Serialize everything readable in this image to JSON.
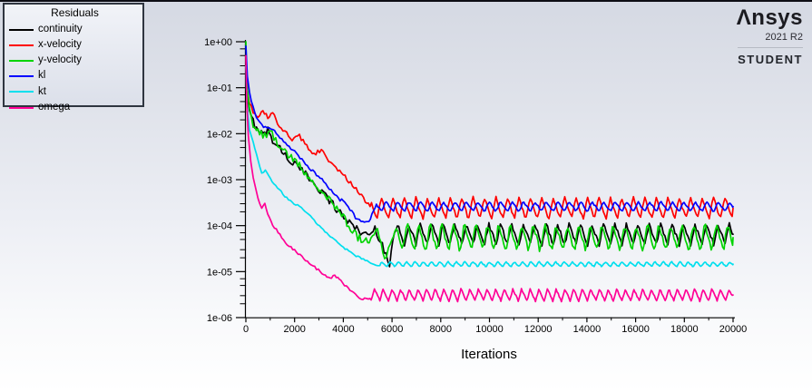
{
  "branding": {
    "logo_glyph": "Λ",
    "logo_rest": "nsys",
    "version": "2021 R2",
    "edition": "STUDENT"
  },
  "legend": {
    "title": "Residuals",
    "entries": [
      {
        "label": "continuity",
        "color": "#000000"
      },
      {
        "label": "x-velocity",
        "color": "#ff0000"
      },
      {
        "label": "y-velocity",
        "color": "#00d400"
      },
      {
        "label": "kl",
        "color": "#0000ff"
      },
      {
        "label": "kt",
        "color": "#00dfee"
      },
      {
        "label": "omega",
        "color": "#ff0096"
      }
    ]
  },
  "chart_data": {
    "type": "line",
    "title": "Residuals",
    "xlabel": "Iterations",
    "ylabel": "",
    "x_range": [
      0,
      20000
    ],
    "x_major_ticks": [
      0,
      2000,
      4000,
      6000,
      8000,
      10000,
      12000,
      14000,
      16000,
      18000,
      20000
    ],
    "x_minor_tick_step": 1000,
    "y_scale": "log",
    "y_range": [
      1e-06,
      1
    ],
    "y_tick_labels": [
      "1e+00",
      "1e-01",
      "1e-02",
      "1e-03",
      "1e-04",
      "1e-05",
      "1e-06"
    ],
    "grid": false,
    "legend_position": "top-left",
    "series": [
      {
        "name": "continuity",
        "color": "#000000",
        "descent_jitter": 0.09,
        "descent_points": [
          [
            0,
            0.45
          ],
          [
            60,
            0.06
          ],
          [
            150,
            0.028
          ],
          [
            300,
            0.018
          ],
          [
            500,
            0.013
          ],
          [
            700,
            0.0095
          ],
          [
            900,
            0.012
          ],
          [
            1100,
            0.0075
          ],
          [
            1400,
            0.0048
          ],
          [
            1700,
            0.003
          ],
          [
            2000,
            0.0022
          ],
          [
            2300,
            0.0015
          ],
          [
            2600,
            0.0011
          ],
          [
            2900,
            0.00075
          ],
          [
            3200,
            0.0005
          ],
          [
            3500,
            0.00032
          ],
          [
            3800,
            0.00021
          ],
          [
            4100,
            0.00014
          ],
          [
            4400,
            0.0001
          ],
          [
            4700,
            7.5e-05
          ],
          [
            5000,
            6e-05
          ],
          [
            5300,
            8.5e-05
          ],
          [
            5600,
            4e-05
          ],
          [
            5900,
            1.4e-05
          ],
          [
            6100,
            7e-05
          ]
        ],
        "steady_state": {
          "from": 6100,
          "to": 20000,
          "mean": 6.5e-05,
          "log_amplitude": 0.22,
          "period": 470,
          "phase": 0.15,
          "jitter": 0.05
        }
      },
      {
        "name": "x-velocity",
        "color": "#ff0000",
        "descent_jitter": 0.045,
        "descent_points": [
          [
            0,
            0.3
          ],
          [
            60,
            0.08
          ],
          [
            150,
            0.045
          ],
          [
            300,
            0.03
          ],
          [
            500,
            0.024
          ],
          [
            700,
            0.032
          ],
          [
            900,
            0.022
          ],
          [
            1100,
            0.028
          ],
          [
            1300,
            0.017
          ],
          [
            1600,
            0.011
          ],
          [
            1900,
            0.0075
          ],
          [
            2200,
            0.0088
          ],
          [
            2500,
            0.0052
          ],
          [
            2800,
            0.0036
          ],
          [
            3100,
            0.0044
          ],
          [
            3400,
            0.0027
          ],
          [
            3700,
            0.0018
          ],
          [
            4000,
            0.00125
          ],
          [
            4300,
            0.00085
          ],
          [
            4600,
            0.00055
          ],
          [
            4900,
            0.00034
          ],
          [
            5100,
            0.00026
          ]
        ],
        "steady_state": {
          "from": 5100,
          "to": 20000,
          "mean": 0.00024,
          "log_amplitude": 0.24,
          "period": 470,
          "phase": 0.55,
          "jitter": 0.035
        }
      },
      {
        "name": "y-velocity",
        "color": "#00d400",
        "descent_jitter": 0.08,
        "descent_points": [
          [
            0,
            1.0
          ],
          [
            50,
            0.12
          ],
          [
            150,
            0.035
          ],
          [
            300,
            0.016
          ],
          [
            500,
            0.0115
          ],
          [
            700,
            0.009
          ],
          [
            1000,
            0.011
          ],
          [
            1300,
            0.0062
          ],
          [
            1600,
            0.0042
          ],
          [
            2000,
            0.0026
          ],
          [
            2400,
            0.0015
          ],
          [
            2800,
            0.00088
          ],
          [
            3200,
            0.0005
          ],
          [
            3600,
            0.00029
          ],
          [
            4000,
            0.00015
          ],
          [
            4300,
            9e-05
          ],
          [
            4600,
            5.5e-05
          ],
          [
            5000,
            4.5e-05
          ],
          [
            5400,
            7.5e-05
          ],
          [
            5700,
            1.8e-05
          ],
          [
            6000,
            5e-05
          ]
        ],
        "steady_state": {
          "from": 6000,
          "to": 20000,
          "mean": 5.5e-05,
          "log_amplitude": 0.3,
          "period": 470,
          "phase": 0.3,
          "jitter": 0.06
        }
      },
      {
        "name": "kl",
        "color": "#0000ff",
        "descent_jitter": 0.035,
        "descent_points": [
          [
            0,
            0.8
          ],
          [
            60,
            0.18
          ],
          [
            150,
            0.08
          ],
          [
            300,
            0.038
          ],
          [
            500,
            0.019
          ],
          [
            800,
            0.0135
          ],
          [
            1100,
            0.0125
          ],
          [
            1400,
            0.0085
          ],
          [
            1700,
            0.0058
          ],
          [
            2000,
            0.004
          ],
          [
            2300,
            0.0028
          ],
          [
            2600,
            0.0018
          ],
          [
            2900,
            0.00128
          ],
          [
            3200,
            0.0009
          ],
          [
            3500,
            0.00058
          ],
          [
            3800,
            0.00038
          ],
          [
            4000,
            0.00034
          ],
          [
            4200,
            0.00026
          ],
          [
            4500,
            0.00015
          ],
          [
            4800,
            0.000115
          ],
          [
            5050,
            0.00012
          ],
          [
            5300,
            0.00024
          ]
        ],
        "steady_state": {
          "from": 5300,
          "to": 20000,
          "mean": 0.00026,
          "log_amplitude": 0.11,
          "period": 470,
          "phase": 0.15,
          "jitter": 0.02
        }
      },
      {
        "name": "kt",
        "color": "#00dfee",
        "descent_jitter": 0.02,
        "descent_points": [
          [
            0,
            0.3
          ],
          [
            50,
            0.04
          ],
          [
            150,
            0.012
          ],
          [
            300,
            0.0065
          ],
          [
            500,
            0.0028
          ],
          [
            650,
            0.00135
          ],
          [
            800,
            0.0016
          ],
          [
            1000,
            0.00105
          ],
          [
            1300,
            0.00068
          ],
          [
            1600,
            0.00044
          ],
          [
            1900,
            0.00032
          ],
          [
            2200,
            0.00026
          ],
          [
            2500,
            0.00019
          ],
          [
            2800,
            0.00013
          ],
          [
            3100,
            9e-05
          ],
          [
            3400,
            6.4e-05
          ],
          [
            3700,
            4.8e-05
          ],
          [
            4000,
            3.4e-05
          ],
          [
            4300,
            2.6e-05
          ],
          [
            4600,
            2.1e-05
          ],
          [
            4900,
            1.75e-05
          ],
          [
            5200,
            1.45e-05
          ],
          [
            5500,
            1.35e-05
          ]
        ],
        "steady_state": {
          "from": 5500,
          "to": 20000,
          "mean": 1.45e-05,
          "log_amplitude": 0.055,
          "period": 340,
          "phase": 0.0,
          "jitter": 0.012
        }
      },
      {
        "name": "omega",
        "color": "#ff0096",
        "descent_jitter": 0.025,
        "descent_points": [
          [
            0,
            0.5
          ],
          [
            40,
            0.04
          ],
          [
            100,
            0.009
          ],
          [
            200,
            0.0025
          ],
          [
            300,
            0.0011
          ],
          [
            400,
            0.00065
          ],
          [
            500,
            0.00038
          ],
          [
            650,
            0.00025
          ],
          [
            780,
            0.00029
          ],
          [
            900,
            0.00017
          ],
          [
            1100,
            0.000105
          ],
          [
            1400,
            6.2e-05
          ],
          [
            1700,
            4e-05
          ],
          [
            2000,
            2.9e-05
          ],
          [
            2300,
            2.1e-05
          ],
          [
            2600,
            1.55e-05
          ],
          [
            2900,
            1.15e-05
          ],
          [
            3200,
            8.8e-06
          ],
          [
            3450,
            7.2e-06
          ],
          [
            3650,
            8.2e-06
          ],
          [
            3900,
            6.2e-06
          ],
          [
            4200,
            4.4e-06
          ],
          [
            4500,
            3.1e-06
          ],
          [
            4800,
            2.5e-06
          ],
          [
            5100,
            2.6e-06
          ]
        ],
        "steady_state": {
          "from": 5100,
          "to": 20000,
          "mean": 3.1e-06,
          "log_amplitude": 0.13,
          "period": 355,
          "phase": 0.5,
          "jitter": 0.02
        }
      }
    ]
  }
}
